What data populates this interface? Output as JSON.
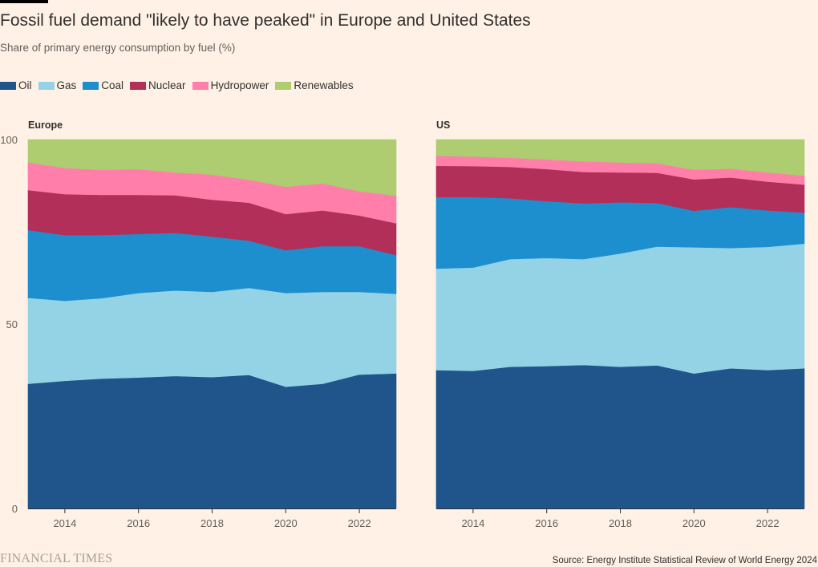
{
  "header": {
    "title": "Fossil fuel demand \"likely to have peaked\" in Europe and United States",
    "subtitle": "Share of primary energy consumption by fuel (%)"
  },
  "legend": [
    {
      "label": "Oil",
      "color": "#1F558B"
    },
    {
      "label": "Gas",
      "color": "#94D3E5"
    },
    {
      "label": "Coal",
      "color": "#1E8FCE"
    },
    {
      "label": "Nuclear",
      "color": "#B22F5A"
    },
    {
      "label": "Hydropower",
      "color": "#FF7FAA"
    },
    {
      "label": "Renewables",
      "color": "#AECC70"
    }
  ],
  "footer": {
    "brand": "FINANCIAL TIMES",
    "source": "Source: Energy Institute Statistical Review of World Energy 2024"
  },
  "chart_data": [
    {
      "type": "area",
      "stacked": true,
      "title": "Europe",
      "x": [
        2013,
        2014,
        2015,
        2016,
        2017,
        2018,
        2019,
        2020,
        2021,
        2022,
        2023
      ],
      "xticks": [
        2014,
        2016,
        2018,
        2020,
        2022
      ],
      "yticks": [
        0,
        50,
        100
      ],
      "xlim": [
        2013,
        2023
      ],
      "ylim": [
        0,
        100
      ],
      "series": [
        {
          "name": "Oil",
          "values": [
            33.8,
            34.6,
            35.2,
            35.5,
            35.9,
            35.6,
            36.2,
            33.0,
            33.8,
            36.3,
            36.6
          ]
        },
        {
          "name": "Gas",
          "values": [
            23.3,
            21.7,
            21.8,
            22.9,
            23.2,
            23.1,
            23.6,
            25.4,
            24.9,
            22.4,
            21.6
          ]
        },
        {
          "name": "Coal",
          "values": [
            18.4,
            17.8,
            17.1,
            16.0,
            15.6,
            15.0,
            12.8,
            11.6,
            12.4,
            12.4,
            10.5
          ]
        },
        {
          "name": "Nuclear",
          "values": [
            10.8,
            11.1,
            10.9,
            10.6,
            10.2,
            10.0,
            10.3,
            9.8,
            9.7,
            8.3,
            8.6
          ]
        },
        {
          "name": "Hydropower",
          "values": [
            7.5,
            7.1,
            6.8,
            7.0,
            6.2,
            6.8,
            6.2,
            7.4,
            7.3,
            6.6,
            7.5
          ]
        },
        {
          "name": "Renewables",
          "values": [
            6.2,
            7.7,
            8.2,
            8.0,
            8.9,
            9.5,
            10.9,
            12.8,
            11.9,
            14.0,
            15.2
          ]
        }
      ]
    },
    {
      "type": "area",
      "stacked": true,
      "title": "US",
      "x": [
        2013,
        2014,
        2015,
        2016,
        2017,
        2018,
        2019,
        2020,
        2021,
        2022,
        2023
      ],
      "xticks": [
        2014,
        2016,
        2018,
        2020,
        2022
      ],
      "yticks": [
        0,
        50,
        100
      ],
      "xlim": [
        2013,
        2023
      ],
      "ylim": [
        0,
        100
      ],
      "series": [
        {
          "name": "Oil",
          "values": [
            37.5,
            37.3,
            38.4,
            38.6,
            38.9,
            38.4,
            38.8,
            36.6,
            38.0,
            37.5,
            38.0
          ]
        },
        {
          "name": "Gas",
          "values": [
            27.5,
            28.0,
            29.2,
            29.3,
            28.7,
            30.7,
            32.2,
            34.2,
            32.6,
            33.4,
            33.8
          ]
        },
        {
          "name": "Coal",
          "values": [
            19.4,
            19.1,
            16.5,
            15.4,
            15.1,
            13.9,
            11.8,
            9.9,
            11.1,
            9.9,
            8.4
          ]
        },
        {
          "name": "Nuclear",
          "values": [
            8.5,
            8.4,
            8.5,
            8.7,
            8.5,
            8.1,
            8.2,
            8.5,
            8.0,
            7.8,
            7.6
          ]
        },
        {
          "name": "Hydropower",
          "values": [
            2.7,
            2.6,
            2.5,
            2.6,
            2.9,
            2.7,
            2.6,
            2.6,
            2.4,
            2.5,
            2.4
          ]
        },
        {
          "name": "Renewables",
          "values": [
            4.4,
            4.6,
            4.9,
            5.4,
            5.9,
            6.2,
            6.4,
            8.2,
            7.9,
            8.9,
            9.8
          ]
        }
      ]
    }
  ]
}
